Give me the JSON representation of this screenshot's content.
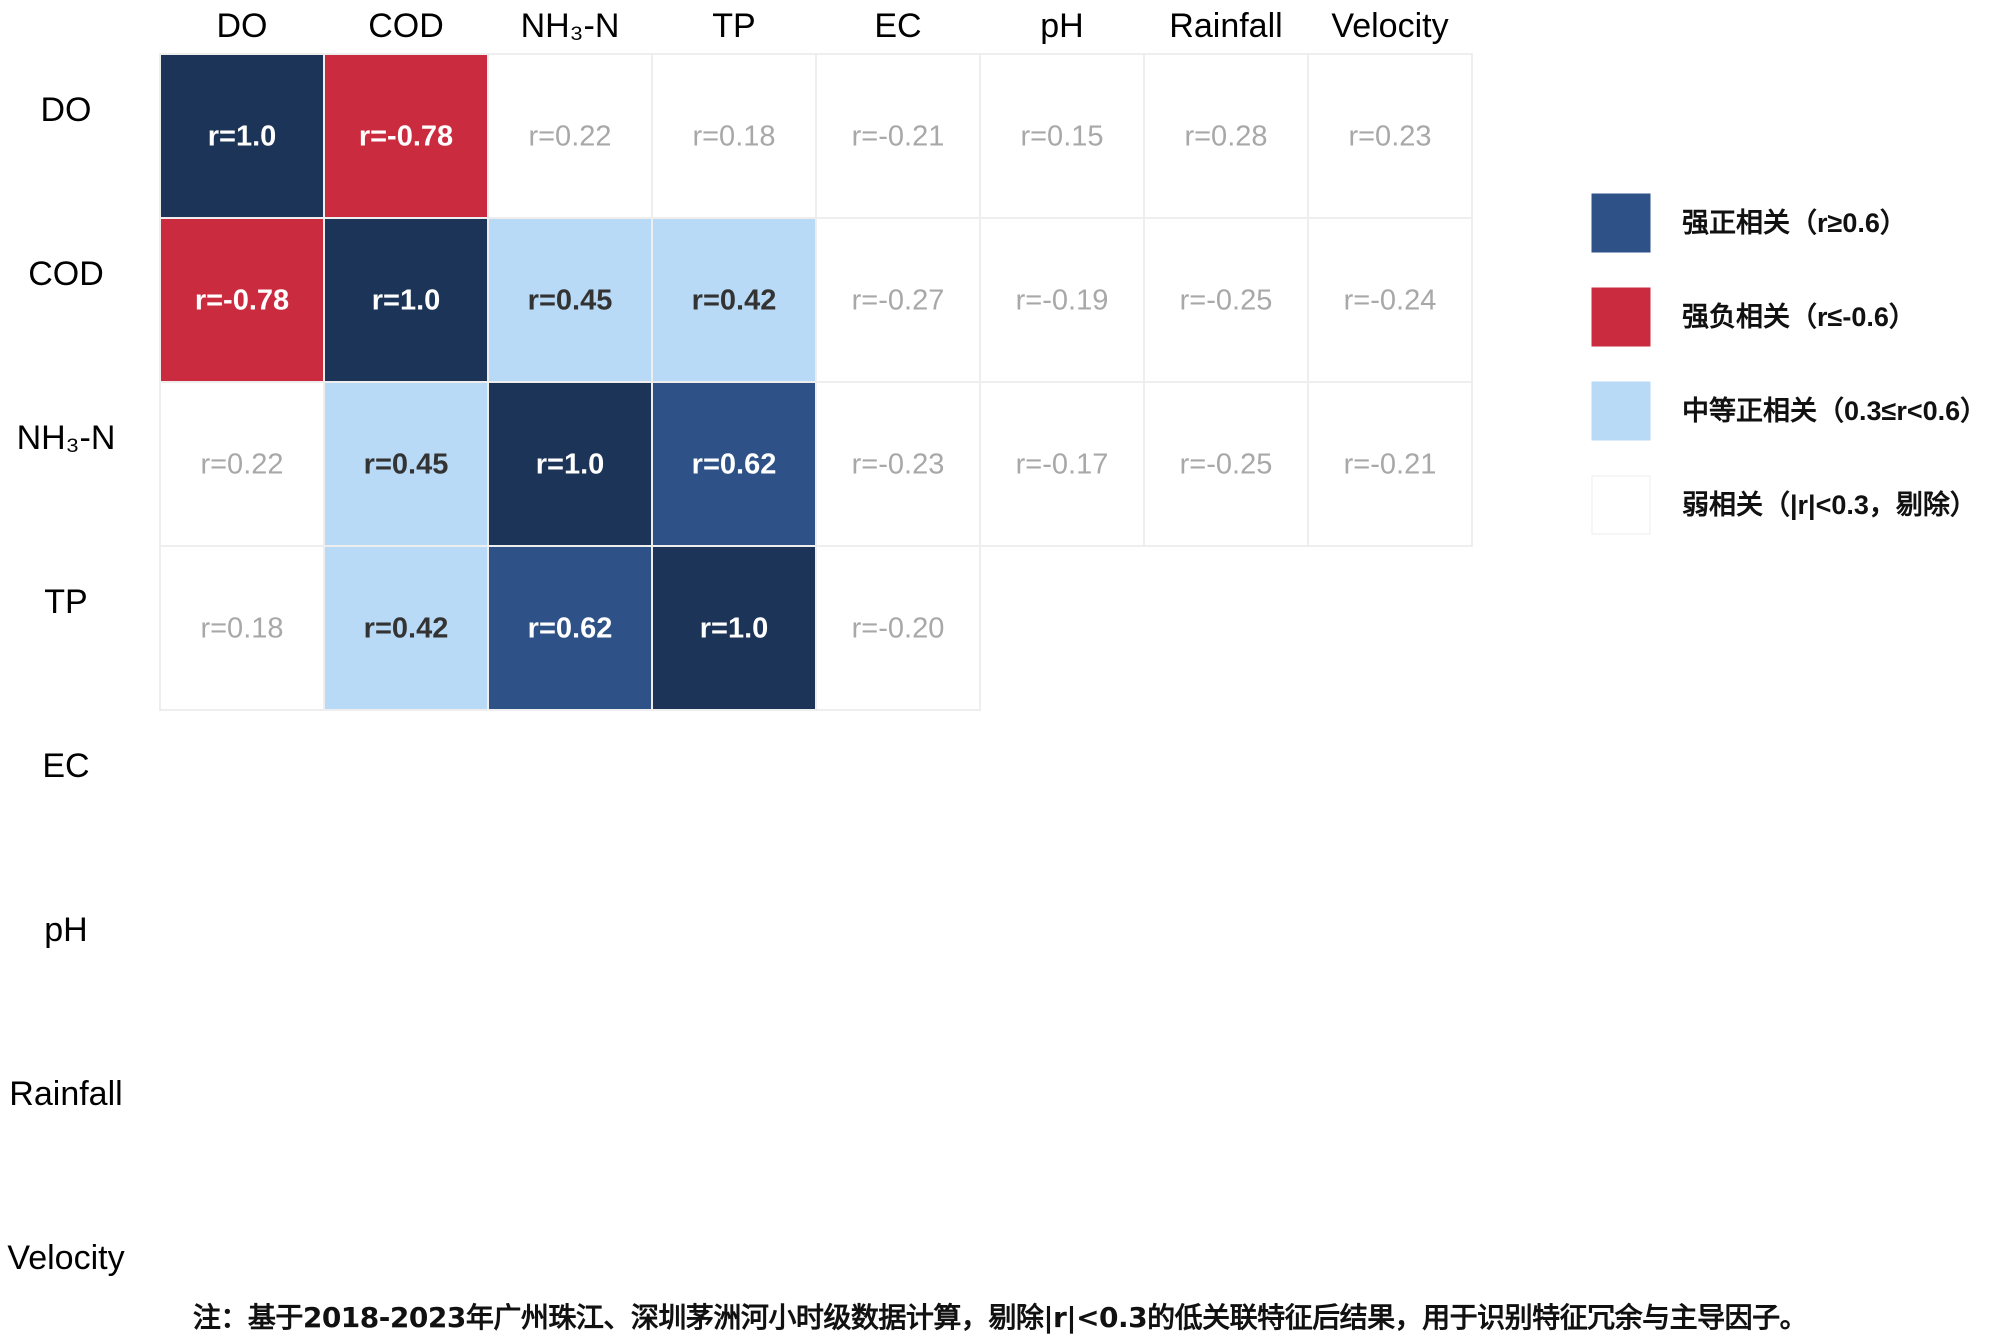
{
  "chart_data": {
    "type": "heatmap",
    "title": "",
    "columns": [
      "DO",
      "COD",
      "NH₃-N",
      "TP",
      "EC",
      "pH",
      "Rainfall",
      "Velocity"
    ],
    "rows": [
      "DO",
      "COD",
      "NH₃-N",
      "TP",
      "EC",
      "pH",
      "Rainfall",
      "Velocity"
    ],
    "cells": [
      [
        {
          "value": 1.0,
          "label": "r=1.0",
          "category": "strong_pos"
        },
        {
          "value": -0.78,
          "label": "r=-0.78",
          "category": "strong_neg"
        },
        {
          "value": 0.22,
          "label": "r=0.22",
          "category": "weak"
        },
        {
          "value": 0.18,
          "label": "r=0.18",
          "category": "weak"
        },
        {
          "value": -0.21,
          "label": "r=-0.21",
          "category": "weak"
        },
        {
          "value": 0.15,
          "label": "r=0.15",
          "category": "weak"
        },
        {
          "value": 0.28,
          "label": "r=0.28",
          "category": "weak"
        },
        {
          "value": 0.23,
          "label": "r=0.23",
          "category": "weak"
        }
      ],
      [
        {
          "value": -0.78,
          "label": "r=-0.78",
          "category": "strong_neg"
        },
        {
          "value": 1.0,
          "label": "r=1.0",
          "category": "strong_pos"
        },
        {
          "value": 0.45,
          "label": "r=0.45",
          "category": "moderate_pos"
        },
        {
          "value": 0.42,
          "label": "r=0.42",
          "category": "moderate_pos"
        },
        {
          "value": -0.27,
          "label": "r=-0.27",
          "category": "weak"
        },
        {
          "value": -0.19,
          "label": "r=-0.19",
          "category": "weak"
        },
        {
          "value": -0.25,
          "label": "r=-0.25",
          "category": "weak"
        },
        {
          "value": -0.24,
          "label": "r=-0.24",
          "category": "weak"
        }
      ],
      [
        {
          "value": 0.22,
          "label": "r=0.22",
          "category": "weak"
        },
        {
          "value": 0.45,
          "label": "r=0.45",
          "category": "moderate_pos"
        },
        {
          "value": 1.0,
          "label": "r=1.0",
          "category": "strong_pos"
        },
        {
          "value": 0.62,
          "label": "r=0.62",
          "category": "strong_pos"
        },
        {
          "value": -0.23,
          "label": "r=-0.23",
          "category": "weak"
        },
        {
          "value": -0.17,
          "label": "r=-0.17",
          "category": "weak"
        },
        {
          "value": -0.25,
          "label": "r=-0.25",
          "category": "weak"
        },
        {
          "value": -0.21,
          "label": "r=-0.21",
          "category": "weak"
        }
      ],
      [
        {
          "value": 0.18,
          "label": "r=0.18",
          "category": "weak"
        },
        {
          "value": 0.42,
          "label": "r=0.42",
          "category": "moderate_pos"
        },
        {
          "value": 0.62,
          "label": "r=0.62",
          "category": "strong_pos"
        },
        {
          "value": 1.0,
          "label": "r=1.0",
          "category": "strong_pos"
        },
        {
          "value": -0.2,
          "label": "r=-0.20",
          "category": "weak"
        }
      ],
      [],
      [],
      [],
      []
    ],
    "legend": {
      "position": "right",
      "entries": [
        {
          "key": "strong_pos",
          "label": "强正相关（r≥0.6）",
          "color": "#2e5287"
        },
        {
          "key": "strong_neg",
          "label": "强负相关（r≤-0.6）",
          "color": "#cb2b3e"
        },
        {
          "key": "moderate_pos",
          "label": "中等正相关（0.3≤r<0.6）",
          "color": "#b9daf6"
        },
        {
          "key": "weak",
          "label": "弱相关（|r|<0.3，剔除）",
          "color": "#ffffff"
        }
      ]
    },
    "colors": {
      "diagonal": "#1c3458",
      "strong_pos": "#2e5287",
      "strong_neg": "#cb2b3e",
      "moderate_pos": "#b9daf6",
      "weak": "#ffffff",
      "grid_line": "#eeeeee",
      "weak_text": "#a8a8a8",
      "dark_text": "#333333"
    },
    "footnote": "注：基于2018-2023年广州珠江、深圳茅洲河小时级数据计算，剔除|r|<0.3的低关联特征后结果，用于识别特征冗余与主导因子。"
  }
}
